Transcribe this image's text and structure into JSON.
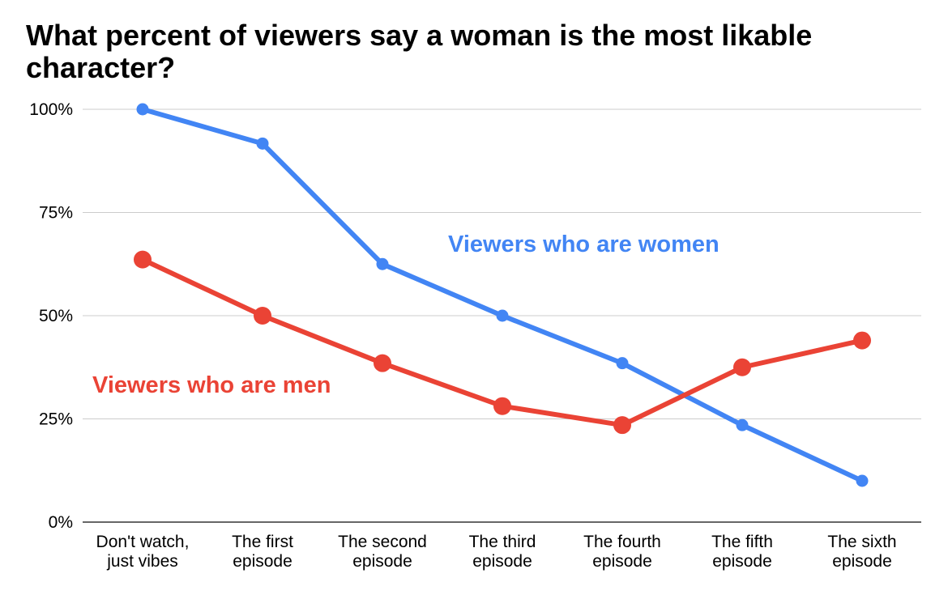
{
  "chart_data": {
    "type": "line",
    "title": "What percent of viewers say a woman is the most likable character?",
    "xlabel": "",
    "ylabel": "",
    "categories": [
      [
        "Don't watch,",
        "just vibes"
      ],
      [
        "The first",
        "episode"
      ],
      [
        "The second",
        "episode"
      ],
      [
        "The third",
        "episode"
      ],
      [
        "The fourth",
        "episode"
      ],
      [
        "The fifth",
        "episode"
      ],
      [
        "The sixth",
        "episode"
      ]
    ],
    "ylim": [
      0,
      100
    ],
    "y_ticks": [
      0,
      25,
      50,
      75,
      100
    ],
    "y_tick_labels": [
      "0%",
      "25%",
      "50%",
      "75%",
      "100%"
    ],
    "grid": true,
    "legend": "none",
    "series": [
      {
        "name": "Viewers who are women",
        "color": "#4285f4",
        "marker": "small-circle",
        "values": [
          100,
          91.7,
          62.5,
          50,
          38.5,
          23.5,
          10
        ]
      },
      {
        "name": "Viewers who are men",
        "color": "#ea4335",
        "marker": "large-circle",
        "values": [
          63.6,
          50,
          38.5,
          28.1,
          23.5,
          37.5,
          44
        ]
      }
    ]
  }
}
